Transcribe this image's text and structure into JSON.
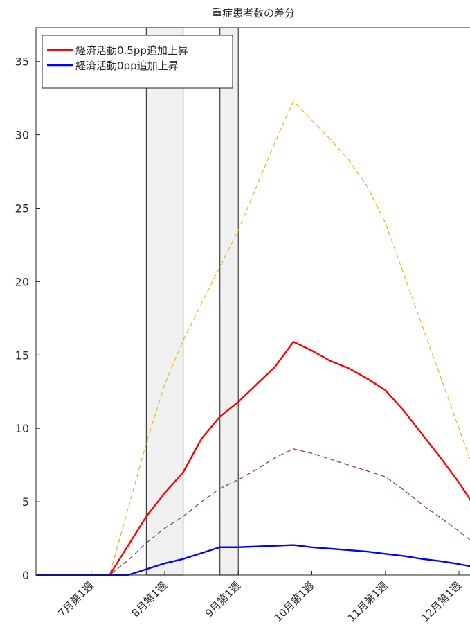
{
  "chart_data": {
    "type": "line",
    "title": "重症患者数の差分",
    "xlabel": "",
    "ylabel": "",
    "xlim": [
      1,
      24.6
    ],
    "ylim": [
      0,
      37.3
    ],
    "grid": false,
    "legend_position": "top-left",
    "y_ticks": [
      0,
      5,
      10,
      15,
      20,
      25,
      30,
      35
    ],
    "x_ticks": [
      {
        "x": 4,
        "label": "7月第1週"
      },
      {
        "x": 8,
        "label": "8月第1週"
      },
      {
        "x": 12,
        "label": "9月第1週"
      },
      {
        "x": 16,
        "label": "10月第1週"
      },
      {
        "x": 20,
        "label": "11月第1週"
      },
      {
        "x": 24,
        "label": "12月第1週"
      }
    ],
    "shaded_periods": [
      {
        "start": 7,
        "end": 9
      },
      {
        "start": 11,
        "end": 12
      }
    ],
    "series": [
      {
        "name": "経済活動0.5pp追加上昇",
        "color": "#ff0000",
        "style": "solid",
        "x": [
          1,
          2,
          3,
          4,
          5,
          6,
          7,
          8,
          9,
          10,
          11,
          12,
          13,
          14,
          15,
          16,
          17,
          18,
          19,
          20,
          21,
          22,
          23,
          24,
          25
        ],
        "y": [
          0,
          0,
          0,
          0,
          0,
          2.0,
          4.0,
          5.6,
          7.0,
          9.3,
          10.8,
          11.8,
          13.0,
          14.2,
          15.9,
          15.3,
          14.6,
          14.1,
          13.4,
          12.6,
          11.2,
          9.6,
          8.0,
          6.3,
          4.4
        ]
      },
      {
        "name": "経済活動0pp追加上昇",
        "color": "#0000ff",
        "style": "solid",
        "x": [
          1,
          2,
          3,
          4,
          5,
          6,
          7,
          8,
          9,
          10,
          11,
          12,
          13,
          14,
          15,
          16,
          17,
          18,
          19,
          20,
          21,
          22,
          23,
          24,
          25
        ],
        "y": [
          0,
          0,
          0,
          0,
          0,
          0,
          0.4,
          0.8,
          1.1,
          1.5,
          1.9,
          1.9,
          1.95,
          2.0,
          2.05,
          1.9,
          1.8,
          1.7,
          1.6,
          1.45,
          1.3,
          1.1,
          0.95,
          0.75,
          0.5
        ]
      },
      {
        "color": "#edb120",
        "style": "dashed",
        "x": [
          1,
          2,
          3,
          4,
          5,
          6,
          7,
          8,
          9,
          10,
          11,
          12,
          13,
          14,
          15,
          16,
          17,
          18,
          19,
          20,
          21,
          22,
          23,
          24,
          25
        ],
        "y": [
          0,
          0,
          0,
          0,
          0,
          4.5,
          9.0,
          13.0,
          16.0,
          18.5,
          21.0,
          23.5,
          26.5,
          29.5,
          32.3,
          31.0,
          29.7,
          28.3,
          26.5,
          24.0,
          20.5,
          17.0,
          13.5,
          10.0,
          6.5
        ]
      },
      {
        "color": "#7e2f8e",
        "style": "dashed",
        "x": [
          1,
          2,
          3,
          4,
          5,
          6,
          7,
          8,
          9,
          10,
          11,
          12,
          13,
          14,
          15,
          16,
          17,
          18,
          19,
          20,
          21,
          22,
          23,
          24,
          25
        ],
        "y": [
          0,
          0,
          0,
          0,
          0,
          1.0,
          2.2,
          3.2,
          4.0,
          5.0,
          5.9,
          6.5,
          7.2,
          8.0,
          8.6,
          8.3,
          7.9,
          7.5,
          7.1,
          6.7,
          5.8,
          4.8,
          3.9,
          3.0,
          2.0
        ]
      }
    ]
  }
}
